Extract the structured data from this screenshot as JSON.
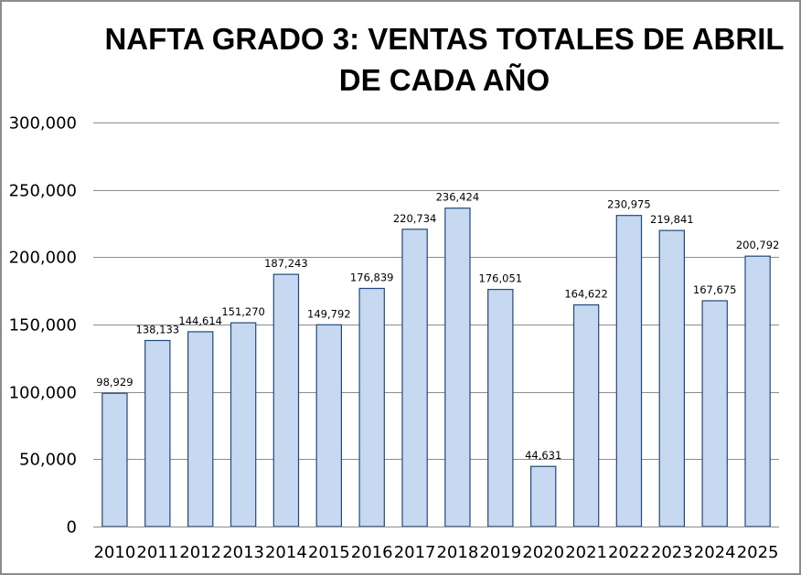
{
  "chart_data": {
    "type": "bar",
    "title_lines": [
      "NAFTA GRADO 3: VENTAS TOTALES DE ABRIL",
      "DE CADA AÑO"
    ],
    "categories": [
      "2010",
      "2011",
      "2012",
      "2013",
      "2014",
      "2015",
      "2016",
      "2017",
      "2018",
      "2019",
      "2020",
      "2021",
      "2022",
      "2023",
      "2024",
      "2025"
    ],
    "values": [
      98929,
      138133,
      144614,
      151270,
      187243,
      149792,
      176839,
      220734,
      236424,
      176051,
      44631,
      164622,
      230975,
      219841,
      167675,
      200792
    ],
    "data_labels": [
      "98,929",
      "138,133",
      "144,614",
      "151,270",
      "187,243",
      "149,792",
      "176,839",
      "220,734",
      "236,424",
      "176,051",
      "44,631",
      "164,622",
      "230,975",
      "219,841",
      "167,675",
      "200,792"
    ],
    "xlabel": "",
    "ylabel": "",
    "ylim": [
      0,
      300000
    ],
    "yticks": [
      0,
      50000,
      100000,
      150000,
      200000,
      250000,
      300000
    ],
    "ytick_labels": [
      "0",
      "50,000",
      "100,000",
      "150,000",
      "200,000",
      "250,000",
      "300,000"
    ],
    "grid": true,
    "legend": "none",
    "colors": {
      "bar_fill": "#c6d9f1",
      "bar_stroke": "#1f497d",
      "grid": "#8c8c8c",
      "border": "#8c8c8c"
    }
  }
}
